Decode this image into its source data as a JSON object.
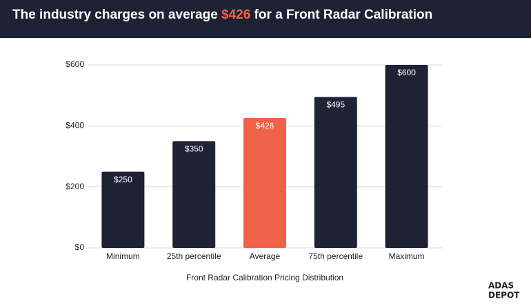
{
  "chart_data": {
    "type": "bar",
    "title": [
      "The industry charges on average ",
      "$426",
      " for a Front Radar Calibration"
    ],
    "title_colors": [
      "#ffffff",
      "#f0614a",
      "#ffffff"
    ],
    "categories": [
      "Minimum",
      "25th percentile",
      "Average",
      "75th percentile",
      "Maximum"
    ],
    "values": [
      250,
      350,
      426,
      495,
      600
    ],
    "value_labels": [
      "$250",
      "$350",
      "$426",
      "$495",
      "$600"
    ],
    "colors": [
      "#1f2235",
      "#1f2235",
      "#f0614a",
      "#1f2235",
      "#1f2235"
    ],
    "x_label": "Front Radar Calibration Pricing Distribution",
    "ylim": [
      0,
      600
    ],
    "yticks": [
      {
        "value": 0,
        "label": "$0"
      },
      {
        "value": 200,
        "label": "$200"
      },
      {
        "value": 400,
        "label": "$400"
      },
      {
        "value": 600,
        "label": "$600"
      }
    ],
    "grid": true
  },
  "logo": [
    "ADAS",
    "DEPOT"
  ]
}
